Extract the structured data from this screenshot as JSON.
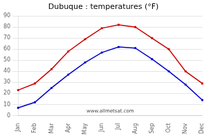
{
  "chart_data": {
    "type": "line",
    "title": "Dubuque : temperatures (°F)",
    "categories": [
      "Jan",
      "Feb",
      "Mar",
      "Apr",
      "May",
      "Jun",
      "Jul",
      "Aug",
      "Sep",
      "Oct",
      "Nov",
      "Dec"
    ],
    "series": [
      {
        "color": "#cc0000",
        "marker": "square",
        "values": [
          23,
          29,
          42,
          58,
          69,
          79,
          82,
          80,
          70,
          60,
          40,
          29
        ]
      },
      {
        "color": "#0000cc",
        "marker": "square",
        "values": [
          7,
          12,
          25,
          37,
          48,
          57,
          62,
          61,
          51,
          40,
          28,
          14
        ]
      }
    ],
    "ylim": [
      0,
      90
    ],
    "yticks": [
      0,
      10,
      20,
      30,
      40,
      50,
      60,
      70,
      80,
      90
    ],
    "grid": "y",
    "annotations": [
      "www.allmetsat.com"
    ]
  }
}
